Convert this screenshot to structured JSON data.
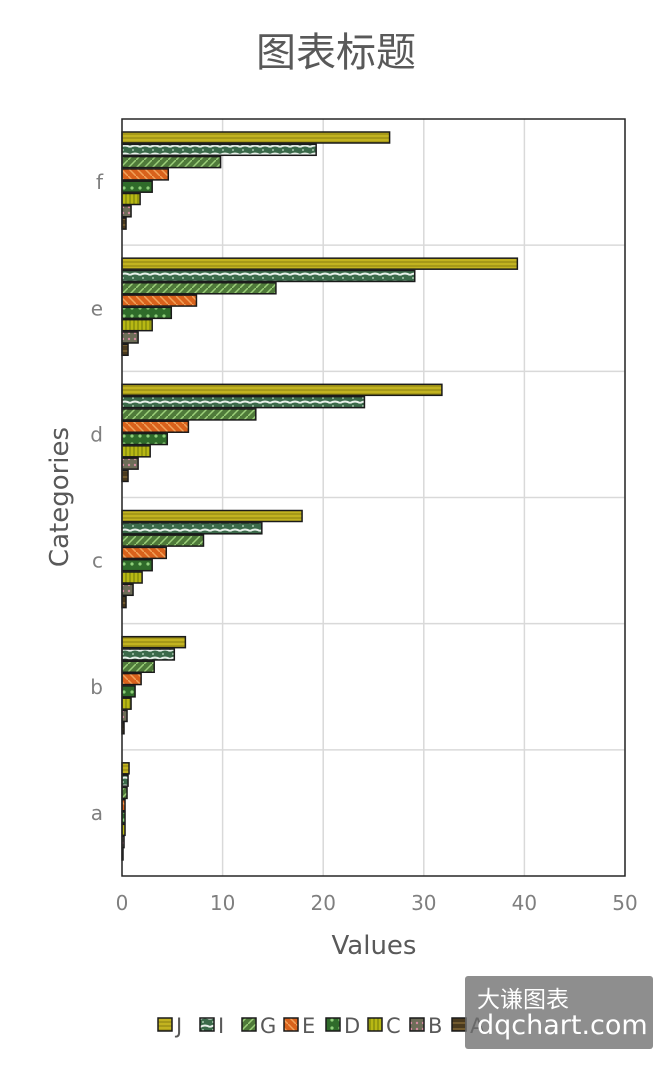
{
  "chart_data": {
    "type": "bar",
    "orientation": "horizontal",
    "title": "图表标题",
    "xlabel": "Values",
    "ylabel": "Categories",
    "categories": [
      "a",
      "b",
      "c",
      "d",
      "e",
      "f"
    ],
    "xlim": [
      0,
      50
    ],
    "x_ticks": [
      "0",
      "10",
      "20",
      "30",
      "40",
      "50"
    ],
    "grid": true,
    "legend_position": "bottom",
    "series": [
      {
        "name": "A",
        "color": "#4a3a1e",
        "values": [
          0.1,
          0.2,
          0.4,
          0.6,
          0.6,
          0.4
        ]
      },
      {
        "name": "B",
        "color": "#6d6d58",
        "values": [
          0.2,
          0.5,
          1.1,
          1.6,
          1.6,
          0.9
        ]
      },
      {
        "name": "C",
        "color": "#b8b814",
        "values": [
          0.3,
          0.9,
          2.0,
          2.8,
          3.0,
          1.8
        ]
      },
      {
        "name": "D",
        "color": "#2f6b2a",
        "values": [
          0.3,
          1.3,
          3.0,
          4.5,
          4.9,
          3.0
        ]
      },
      {
        "name": "E",
        "color": "#d9621c",
        "values": [
          0.3,
          1.9,
          4.4,
          6.6,
          7.4,
          4.6
        ]
      },
      {
        "name": "G",
        "color": "#4f7a3a",
        "values": [
          0.5,
          3.2,
          8.1,
          13.3,
          15.3,
          9.8
        ]
      },
      {
        "name": "I",
        "color": "#3b6a4a",
        "values": [
          0.6,
          5.2,
          13.9,
          24.1,
          29.1,
          19.3
        ]
      },
      {
        "name": "J",
        "color": "#c2b320",
        "values": [
          0.7,
          6.3,
          17.9,
          31.8,
          39.3,
          26.6
        ]
      }
    ]
  },
  "legend_order": [
    "J",
    "I",
    "G",
    "E",
    "D",
    "C",
    "B",
    "A"
  ],
  "watermark": {
    "line1": "大谦图表",
    "line2": "dqchart.com"
  }
}
